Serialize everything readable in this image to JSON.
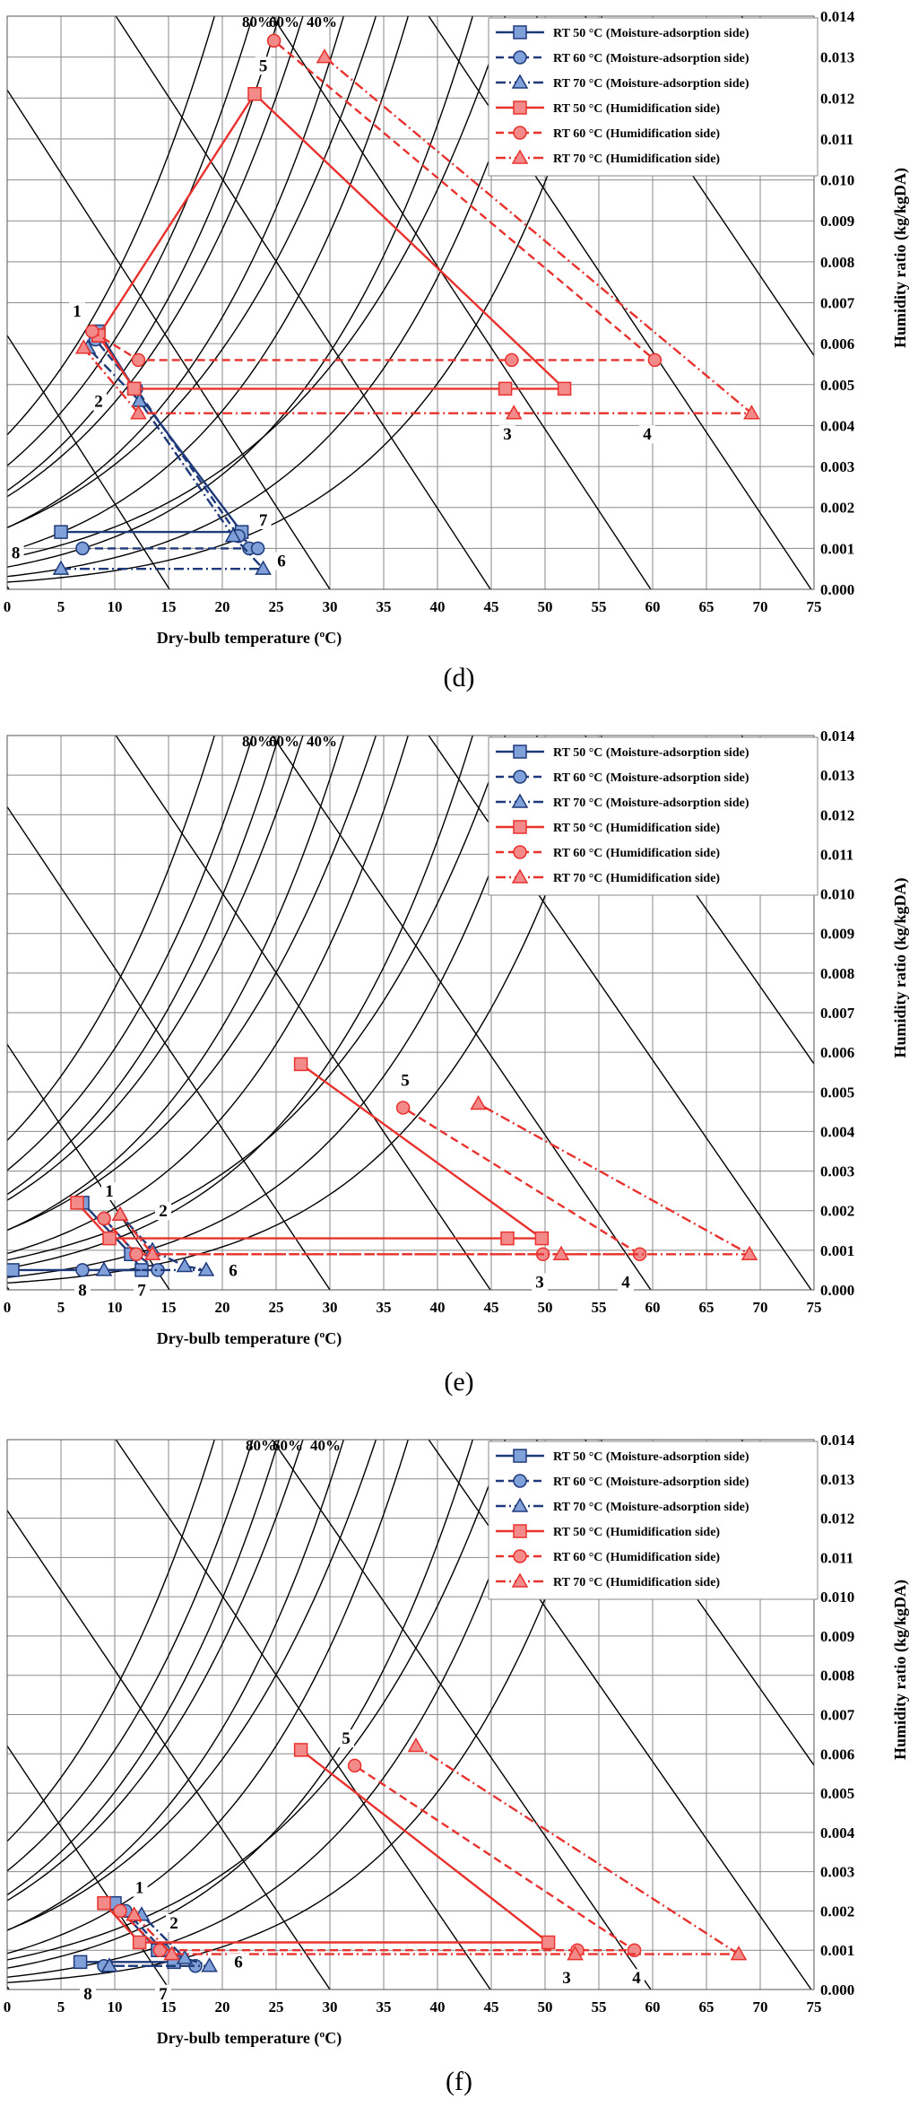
{
  "figure": {
    "panels": [
      {
        "id": "d",
        "label": "(d)"
      },
      {
        "id": "e",
        "label": "(e)"
      },
      {
        "id": "f",
        "label": "(f)"
      }
    ]
  },
  "chart_data": [
    {
      "type": "line",
      "subtype": "psychrometric chart",
      "panel_label": "(d)",
      "xlabel": "Dry-bulb temperature (ºC)",
      "ylabel": "Humidity ratio (kg/kgDA)",
      "xlim": [
        0,
        75
      ],
      "ylim": [
        0,
        0.014
      ],
      "x_ticks": [
        "0",
        "5",
        "10",
        "15",
        "20",
        "25",
        "30",
        "35",
        "40",
        "45",
        "50",
        "55",
        "60",
        "65",
        "70",
        "75"
      ],
      "y_ticks": [
        "0.000",
        "0.001",
        "0.002",
        "0.003",
        "0.004",
        "0.005",
        "0.006",
        "0.007",
        "0.008",
        "0.009",
        "0.010",
        "0.011",
        "0.012",
        "0.013",
        "0.014"
      ],
      "rh_labels": [
        "80%",
        "60%",
        "40%"
      ],
      "grid": true,
      "legend_position": "top-right",
      "series": [
        {
          "name": "RT 50 °C (Moisture-adsorption side)",
          "color": "#1f3a7a",
          "marker": "square",
          "dash": "solid",
          "points": [
            [
              5.0,
              0.0014
            ],
            [
              21.8,
              0.0014
            ],
            [
              11.8,
              0.0049
            ],
            [
              8.5,
              0.0063
            ]
          ]
        },
        {
          "name": "RT 60 °C (Moisture-adsorption side)",
          "color": "#1f3a7a",
          "marker": "circle",
          "dash": "dashed",
          "points": [
            [
              7.0,
              0.001
            ],
            [
              22.5,
              0.001
            ],
            [
              23.3,
              0.001
            ],
            [
              21.5,
              0.0013
            ],
            [
              12.0,
              0.0049
            ],
            [
              8.2,
              0.0061
            ]
          ]
        },
        {
          "name": "RT 70 °C (Moisture-adsorption side)",
          "color": "#1f3a7a",
          "marker": "triangle",
          "dash": "dashdot",
          "points": [
            [
              5.0,
              0.0005
            ],
            [
              23.8,
              0.0005
            ],
            [
              21.0,
              0.0013
            ],
            [
              12.3,
              0.0046
            ],
            [
              7.5,
              0.0059
            ]
          ]
        },
        {
          "name": "RT 50 °C (Humidification side)",
          "color": "#e8322e",
          "marker": "square",
          "dash": "solid",
          "points": [
            [
              8.5,
              0.0062
            ],
            [
              11.8,
              0.0049
            ],
            [
              46.3,
              0.0049
            ],
            [
              51.8,
              0.0049
            ],
            [
              23.0,
              0.0121
            ],
            [
              8.5,
              0.0062
            ]
          ]
        },
        {
          "name": "RT 60 °C (Humidification side)",
          "color": "#e8322e",
          "marker": "circle",
          "dash": "dashed",
          "points": [
            [
              7.9,
              0.0063
            ],
            [
              12.2,
              0.0056
            ],
            [
              46.9,
              0.0056
            ],
            [
              60.2,
              0.0056
            ],
            [
              24.8,
              0.0134
            ]
          ]
        },
        {
          "name": "RT 70 °C (Humidification side)",
          "color": "#e8322e",
          "marker": "triangle",
          "dash": "dashdot",
          "points": [
            [
              7.1,
              0.0059
            ],
            [
              12.2,
              0.0043
            ],
            [
              47.1,
              0.0043
            ],
            [
              69.2,
              0.0043
            ],
            [
              29.5,
              0.013
            ]
          ]
        }
      ],
      "point_labels": [
        {
          "text": "1",
          "x": 6.5,
          "y": 0.0067
        },
        {
          "text": "2",
          "x": 8.5,
          "y": 0.0045
        },
        {
          "text": "3",
          "x": 46.5,
          "y": 0.0037
        },
        {
          "text": "4",
          "x": 59.5,
          "y": 0.0037
        },
        {
          "text": "5",
          "x": 23.8,
          "y": 0.0127
        },
        {
          "text": "6",
          "x": 25.5,
          "y": 0.0006
        },
        {
          "text": "7",
          "x": 23.8,
          "y": 0.0016
        },
        {
          "text": "8",
          "x": 0.8,
          "y": 0.0008
        }
      ]
    },
    {
      "type": "line",
      "subtype": "psychrometric chart",
      "panel_label": "(e)",
      "xlabel": "Dry-bulb temperature (ºC)",
      "ylabel": "Humidity ratio (kg/kgDA)",
      "xlim": [
        0,
        75
      ],
      "ylim": [
        0,
        0.014
      ],
      "x_ticks": [
        "0",
        "5",
        "10",
        "15",
        "20",
        "25",
        "30",
        "35",
        "40",
        "45",
        "50",
        "55",
        "60",
        "65",
        "70",
        "75"
      ],
      "y_ticks": [
        "0.000",
        "0.001",
        "0.002",
        "0.003",
        "0.004",
        "0.005",
        "0.006",
        "0.007",
        "0.008",
        "0.009",
        "0.010",
        "0.011",
        "0.012",
        "0.013",
        "0.014"
      ],
      "rh_labels": [
        "80%",
        "60%",
        "40%"
      ],
      "grid": true,
      "legend_position": "top-right",
      "series": [
        {
          "name": "RT 50 °C (Moisture-adsorption side)",
          "color": "#1f3a7a",
          "marker": "square",
          "dash": "solid",
          "points": [
            [
              0.5,
              0.0005
            ],
            [
              12.5,
              0.0005
            ],
            [
              11.5,
              0.0009
            ],
            [
              7.0,
              0.0022
            ]
          ]
        },
        {
          "name": "RT 60 °C (Moisture-adsorption side)",
          "color": "#1f3a7a",
          "marker": "circle",
          "dash": "dashed",
          "points": [
            [
              7.0,
              0.0005
            ],
            [
              14.0,
              0.0005
            ],
            [
              12.0,
              0.0009
            ],
            [
              9.0,
              0.0018
            ]
          ]
        },
        {
          "name": "RT 70 °C (Moisture-adsorption side)",
          "color": "#1f3a7a",
          "marker": "triangle",
          "dash": "dashdot",
          "points": [
            [
              9.0,
              0.0005
            ],
            [
              18.5,
              0.0005
            ],
            [
              16.5,
              0.0006
            ],
            [
              13.5,
              0.001
            ],
            [
              10.5,
              0.0019
            ]
          ]
        },
        {
          "name": "RT 50 °C (Humidification side)",
          "color": "#e8322e",
          "marker": "square",
          "dash": "solid",
          "points": [
            [
              6.5,
              0.0022
            ],
            [
              9.5,
              0.0013
            ],
            [
              46.5,
              0.0013
            ],
            [
              49.7,
              0.0013
            ],
            [
              27.3,
              0.0057
            ]
          ]
        },
        {
          "name": "RT 60 °C (Humidification side)",
          "color": "#e8322e",
          "marker": "circle",
          "dash": "dashed",
          "points": [
            [
              9.0,
              0.0018
            ],
            [
              12.0,
              0.0009
            ],
            [
              49.8,
              0.0009
            ],
            [
              58.8,
              0.0009
            ],
            [
              36.8,
              0.0046
            ]
          ]
        },
        {
          "name": "RT 70 °C (Humidification side)",
          "color": "#e8322e",
          "marker": "triangle",
          "dash": "dashdot",
          "points": [
            [
              10.5,
              0.0019
            ],
            [
              13.5,
              0.0009
            ],
            [
              51.5,
              0.0009
            ],
            [
              69.0,
              0.0009
            ],
            [
              43.8,
              0.0047
            ]
          ]
        }
      ],
      "point_labels": [
        {
          "text": "1",
          "x": 9.5,
          "y": 0.0024
        },
        {
          "text": "2",
          "x": 14.5,
          "y": 0.0019
        },
        {
          "text": "3",
          "x": 49.5,
          "y": 0.0001
        },
        {
          "text": "4",
          "x": 57.5,
          "y": 0.0001
        },
        {
          "text": "5",
          "x": 37.0,
          "y": 0.0052
        },
        {
          "text": "6",
          "x": 21.0,
          "y": 0.0004
        },
        {
          "text": "7",
          "x": 12.5,
          "y": -0.0001
        },
        {
          "text": "8",
          "x": 7.0,
          "y": -0.0001
        }
      ]
    },
    {
      "type": "line",
      "subtype": "psychrometric chart",
      "panel_label": "(f)",
      "xlabel": "Dry-bulb temperature (ºC)",
      "ylabel": "Humidity ratio (kg/kgDA)",
      "xlim": [
        0,
        75
      ],
      "ylim": [
        0,
        0.014
      ],
      "x_ticks": [
        "0",
        "5",
        "10",
        "15",
        "20",
        "25",
        "30",
        "35",
        "40",
        "45",
        "50",
        "55",
        "60",
        "65",
        "70",
        "75"
      ],
      "y_ticks": [
        "0.000",
        "0.001",
        "0.002",
        "0.003",
        "0.004",
        "0.005",
        "0.006",
        "0.007",
        "0.008",
        "0.009",
        "0.010",
        "0.011",
        "0.012",
        "0.013",
        "0.014"
      ],
      "rh_labels": [
        "80%",
        "60%",
        "40%"
      ],
      "grid": true,
      "legend_position": "top-right",
      "series": [
        {
          "name": "RT 50 °C (Moisture-adsorption side)",
          "color": "#1f3a7a",
          "marker": "square",
          "dash": "solid",
          "points": [
            [
              6.8,
              0.0007
            ],
            [
              15.5,
              0.0007
            ],
            [
              14.0,
              0.001
            ],
            [
              10.0,
              0.0022
            ]
          ]
        },
        {
          "name": "RT 60 °C (Moisture-adsorption side)",
          "color": "#1f3a7a",
          "marker": "circle",
          "dash": "dashed",
          "points": [
            [
              9.0,
              0.0006
            ],
            [
              17.5,
              0.0006
            ],
            [
              14.5,
              0.001
            ],
            [
              11.0,
              0.002
            ]
          ]
        },
        {
          "name": "RT 70 °C (Moisture-adsorption side)",
          "color": "#1f3a7a",
          "marker": "triangle",
          "dash": "dashdot",
          "points": [
            [
              9.5,
              0.0006
            ],
            [
              18.8,
              0.0006
            ],
            [
              16.5,
              0.0008
            ],
            [
              12.5,
              0.0019
            ]
          ]
        },
        {
          "name": "RT 50 °C (Humidification side)",
          "color": "#e8322e",
          "marker": "square",
          "dash": "solid",
          "points": [
            [
              9.0,
              0.0022
            ],
            [
              12.3,
              0.0012
            ],
            [
              50.3,
              0.0012
            ],
            [
              27.3,
              0.0061
            ]
          ]
        },
        {
          "name": "RT 60 °C (Humidification side)",
          "color": "#e8322e",
          "marker": "circle",
          "dash": "dashed",
          "points": [
            [
              10.5,
              0.002
            ],
            [
              14.2,
              0.001
            ],
            [
              53.0,
              0.001
            ],
            [
              58.3,
              0.001
            ],
            [
              32.3,
              0.0057
            ]
          ]
        },
        {
          "name": "RT 70 °C (Humidification side)",
          "color": "#e8322e",
          "marker": "triangle",
          "dash": "dashdot",
          "points": [
            [
              11.8,
              0.0019
            ],
            [
              15.3,
              0.0009
            ],
            [
              52.8,
              0.0009
            ],
            [
              68.0,
              0.0009
            ],
            [
              38.0,
              0.0062
            ]
          ]
        }
      ],
      "point_labels": [
        {
          "text": "1",
          "x": 12.3,
          "y": 0.0025
        },
        {
          "text": "2",
          "x": 15.5,
          "y": 0.0016
        },
        {
          "text": "3",
          "x": 52.0,
          "y": 0.0002
        },
        {
          "text": "4",
          "x": 58.5,
          "y": 0.0002
        },
        {
          "text": "5",
          "x": 31.5,
          "y": 0.0063
        },
        {
          "text": "6",
          "x": 21.5,
          "y": 0.0006
        },
        {
          "text": "7",
          "x": 14.5,
          "y": -0.0002
        },
        {
          "text": "8",
          "x": 7.5,
          "y": -0.0002
        }
      ]
    }
  ]
}
